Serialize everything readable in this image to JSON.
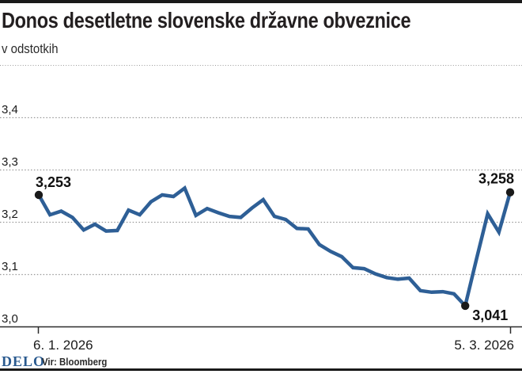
{
  "header": {
    "title": "Donos desetletne slovenske državne obveznice",
    "subtitle": "v odstotkih"
  },
  "footer": {
    "logo": "DELO",
    "logo_color": "#2a5a8f",
    "source": "Vir: Bloomberg"
  },
  "chart_data": {
    "type": "line",
    "title": "Donos desetletne slovenske državne obveznice",
    "ylabel": "v odstotkih",
    "ylim": [
      3.0,
      3.45
    ],
    "grid": "horizontal-dotted",
    "legend": "none",
    "line_color": "#2e5f96",
    "marker_color": "#1a1a1a",
    "x_start_label": "6. 1. 2026",
    "x_end_label": "5. 3. 2026",
    "y_ticks": [
      {
        "label": "3,4",
        "value": 3.4
      },
      {
        "label": "3,3",
        "value": 3.3
      },
      {
        "label": "3,2",
        "value": 3.2
      },
      {
        "label": "3,1",
        "value": 3.1
      },
      {
        "label": "3,0",
        "value": 3.0
      }
    ],
    "values": [
      3.253,
      3.215,
      3.222,
      3.21,
      3.186,
      3.197,
      3.184,
      3.185,
      3.224,
      3.215,
      3.24,
      3.253,
      3.25,
      3.266,
      3.214,
      3.227,
      3.219,
      3.212,
      3.21,
      3.228,
      3.244,
      3.212,
      3.206,
      3.189,
      3.188,
      3.158,
      3.145,
      3.135,
      3.114,
      3.112,
      3.102,
      3.095,
      3.092,
      3.094,
      3.07,
      3.067,
      3.068,
      3.064,
      3.041,
      3.13,
      3.217,
      3.182,
      3.258
    ],
    "annotations": [
      {
        "index": 0,
        "label": "3,253",
        "placement": "above-start"
      },
      {
        "index": 38,
        "label": "3,041",
        "placement": "below-start"
      },
      {
        "index": 42,
        "label": "3,258",
        "placement": "above-end"
      }
    ]
  }
}
